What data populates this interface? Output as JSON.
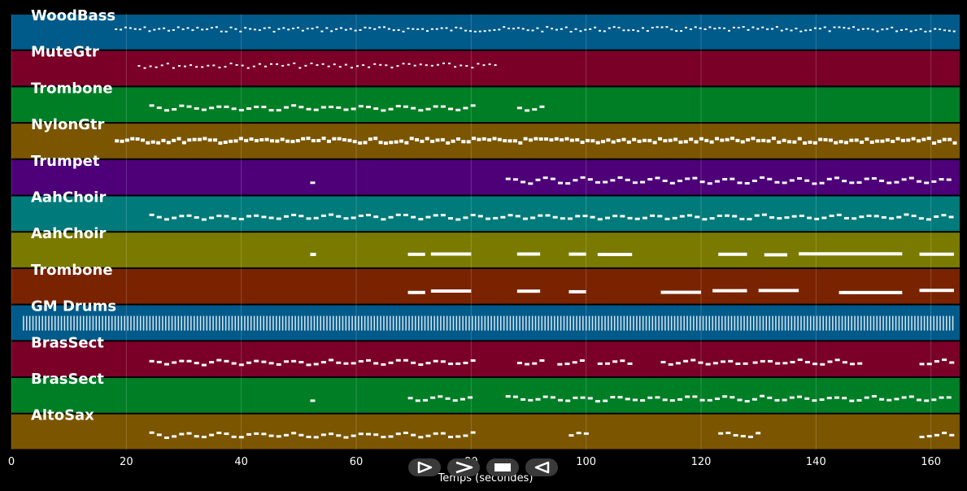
{
  "tracks": [
    {
      "name": "WoodBass",
      "color": "#005a8a",
      "pattern": "bass"
    },
    {
      "name": "MuteGtr",
      "color": "#7a0028",
      "pattern": "mutegtr"
    },
    {
      "name": "Trombone",
      "color": "#007e25",
      "pattern": "melody"
    },
    {
      "name": "NylonGtr",
      "color": "#7b5500",
      "pattern": "nylon"
    },
    {
      "name": "Trumpet",
      "color": "#4d0078",
      "pattern": "trumpet"
    },
    {
      "name": "AahChoir",
      "color": "#007a7a",
      "pattern": "choir"
    },
    {
      "name": "AahChoir",
      "color": "#7a7a00",
      "pattern": "sparse"
    },
    {
      "name": "Trombone",
      "color": "#7a2300",
      "pattern": "sparse2"
    },
    {
      "name": "GM Drums",
      "color": "#005a8a",
      "pattern": "drums"
    },
    {
      "name": "BrasSect",
      "color": "#7a0028",
      "pattern": "brass"
    },
    {
      "name": "BrasSect",
      "color": "#007e25",
      "pattern": "brass2"
    },
    {
      "name": "AltoSax",
      "color": "#7b5500",
      "pattern": "sax"
    }
  ],
  "axis": {
    "xlabel": "Temps (secondes)",
    "ticks": [
      "0",
      "20",
      "40",
      "60",
      "80",
      "100",
      "120",
      "140",
      "160"
    ],
    "range": [
      0,
      165
    ]
  },
  "controls": {
    "play_icon": "play-outline-icon",
    "forward_icon": "forward-icon",
    "stop_icon": "stop-icon",
    "back_icon": "rewind-icon"
  }
}
